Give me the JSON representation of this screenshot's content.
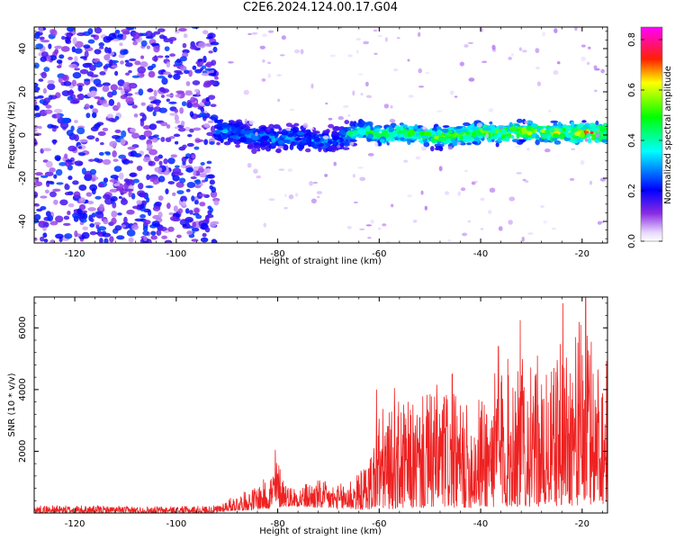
{
  "chart_data": [
    {
      "type": "heatmap",
      "title": "C2E6.2024.124.00.17.G04",
      "xlabel": "Height of straight line (km)",
      "ylabel": "Frequency (Hz)",
      "xlim": [
        -128,
        -15
      ],
      "ylim": [
        -50,
        50
      ],
      "xticks": [
        -120,
        -100,
        -80,
        -60,
        -40,
        -20
      ],
      "yticks": [
        40,
        20,
        0,
        -20,
        -40
      ],
      "colorbar": {
        "label": "Normalized spectral amplitude",
        "range": [
          0.0,
          0.85
        ],
        "ticks": [
          0.0,
          0.2,
          0.4,
          0.6,
          0.8
        ],
        "colors": [
          "#ffffff",
          "#8a2be2",
          "#0000ff",
          "#00ffff",
          "#00ff00",
          "#ffff00",
          "#ff0000",
          "#ff00ff"
        ]
      },
      "regions": [
        {
          "x": [
            -128,
            -92
          ],
          "freq": [
            -50,
            50
          ],
          "amplitude": [
            0.05,
            0.25
          ],
          "description_value": "broadband"
        },
        {
          "x": [
            -92,
            -66
          ],
          "freq": [
            -8,
            8
          ],
          "amplitude": [
            0.1,
            0.35
          ]
        },
        {
          "x": [
            -66,
            -15
          ],
          "freq": [
            -6,
            6
          ],
          "amplitude": [
            0.15,
            0.8
          ]
        }
      ],
      "ridge_center_freq": [
        [
          -92,
          2
        ],
        [
          -88,
          1
        ],
        [
          -84,
          -1
        ],
        [
          -80,
          -2
        ],
        [
          -76,
          -1
        ],
        [
          -72,
          -3
        ],
        [
          -68,
          -2
        ],
        [
          -64,
          2
        ],
        [
          -60,
          0
        ],
        [
          -56,
          1
        ],
        [
          -52,
          0
        ],
        [
          -48,
          -1
        ],
        [
          -44,
          0
        ],
        [
          -40,
          1
        ],
        [
          -36,
          1
        ],
        [
          -32,
          2
        ],
        [
          -28,
          1
        ],
        [
          -24,
          1
        ],
        [
          -20,
          1
        ],
        [
          -16,
          1
        ]
      ]
    },
    {
      "type": "line",
      "title": "",
      "xlabel": "Height of straight line (km)",
      "ylabel": "SNR (10 * v/v)",
      "xlim": [
        -128,
        -15
      ],
      "ylim": [
        0,
        7000
      ],
      "xticks": [
        -120,
        -100,
        -80,
        -60,
        -40,
        -20
      ],
      "yticks": [
        2000,
        4000,
        6000
      ],
      "color": "#ee2222",
      "envelope": [
        [
          -128,
          250
        ],
        [
          -120,
          250
        ],
        [
          -110,
          220
        ],
        [
          -100,
          220
        ],
        [
          -92,
          250
        ],
        [
          -90,
          450
        ],
        [
          -88,
          600
        ],
        [
          -85,
          800
        ],
        [
          -82,
          1200
        ],
        [
          -80,
          1800
        ],
        [
          -78,
          900
        ],
        [
          -76,
          900
        ],
        [
          -74,
          1000
        ],
        [
          -72,
          1100
        ],
        [
          -70,
          1000
        ],
        [
          -68,
          900
        ],
        [
          -66,
          1200
        ],
        [
          -64,
          1300
        ],
        [
          -62,
          1800
        ],
        [
          -60,
          3500
        ],
        [
          -58,
          3300
        ],
        [
          -56,
          3700
        ],
        [
          -54,
          3600
        ],
        [
          -52,
          3700
        ],
        [
          -50,
          4000
        ],
        [
          -48,
          4300
        ],
        [
          -46,
          4000
        ],
        [
          -44,
          3600
        ],
        [
          -42,
          3500
        ],
        [
          -40,
          3900
        ],
        [
          -38,
          4400
        ],
        [
          -36,
          4800
        ],
        [
          -34,
          5200
        ],
        [
          -32,
          5600
        ],
        [
          -30,
          4700
        ],
        [
          -28,
          4300
        ],
        [
          -26,
          4700
        ],
        [
          -24,
          5700
        ],
        [
          -22,
          6000
        ],
        [
          -20,
          6300
        ],
        [
          -18,
          5800
        ],
        [
          -16,
          5200
        ],
        [
          -15,
          5000
        ]
      ],
      "peaks": [
        [
          -80.5,
          2050
        ],
        [
          -60.5,
          4000
        ],
        [
          -32.2,
          6250
        ],
        [
          -23.8,
          6800
        ],
        [
          -19.3,
          7000
        ],
        [
          -28.8,
          5100
        ],
        [
          -36.5,
          5400
        ],
        [
          -45.6,
          4500
        ],
        [
          -57,
          4050
        ]
      ],
      "floor": [
        [
          -128,
          0
        ],
        [
          -92,
          0
        ],
        [
          -90,
          60
        ],
        [
          -82,
          120
        ],
        [
          -78,
          220
        ],
        [
          -70,
          130
        ],
        [
          -66,
          100
        ],
        [
          -60,
          120
        ],
        [
          -50,
          150
        ],
        [
          -40,
          170
        ],
        [
          -30,
          200
        ],
        [
          -20,
          250
        ],
        [
          -15,
          300
        ]
      ]
    }
  ]
}
